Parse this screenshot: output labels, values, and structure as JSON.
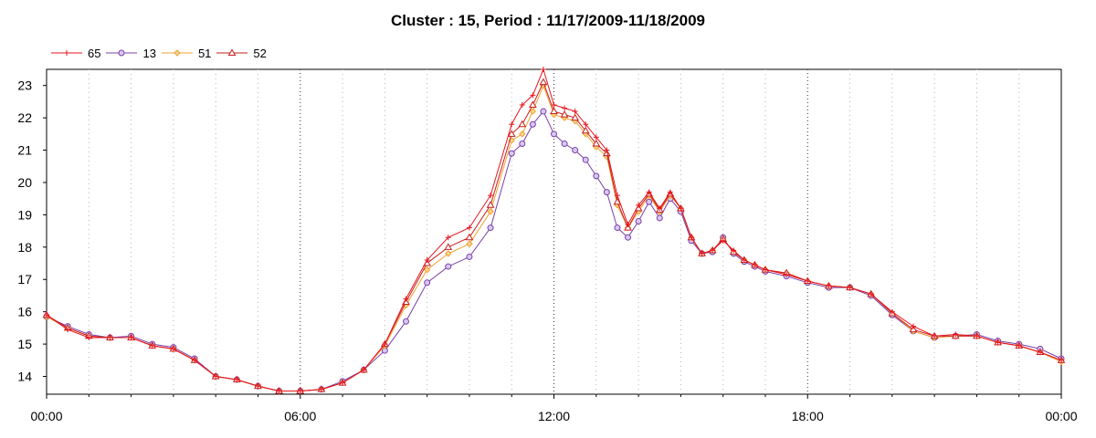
{
  "chart_data": {
    "type": "line",
    "title": "Cluster : 15, Period : 11/17/2009-11/18/2009",
    "xlabel": "",
    "ylabel": "",
    "x_ticks": [
      "00:00",
      "06:00",
      "12:00",
      "18:00",
      "00:00"
    ],
    "x_range_hours": [
      0,
      24
    ],
    "y_ticks": [
      14,
      15,
      16,
      17,
      18,
      19,
      20,
      21,
      22,
      23
    ],
    "ylim": [
      13.45,
      23.5
    ],
    "grid": "vertical dotted",
    "legend": "top-left",
    "x_hours": [
      0,
      0.5,
      1,
      1.5,
      2,
      2.5,
      3,
      3.5,
      4,
      4.5,
      5,
      5.5,
      6,
      6.5,
      7,
      7.5,
      8,
      8.5,
      9,
      9.5,
      10,
      10.5,
      11,
      11.25,
      11.5,
      11.75,
      12,
      12.25,
      12.5,
      12.75,
      13,
      13.25,
      13.5,
      13.75,
      14,
      14.25,
      14.5,
      14.75,
      15,
      15.25,
      15.5,
      15.75,
      16,
      16.25,
      16.5,
      16.75,
      17,
      17.5,
      18,
      18.5,
      19,
      19.5,
      20,
      20.5,
      21,
      21.5,
      22,
      22.5,
      23,
      23.5,
      24
    ],
    "series": [
      {
        "name": "65",
        "color": "#e8141c",
        "marker": "plus",
        "values": [
          15.9,
          15.45,
          15.2,
          15.2,
          15.2,
          14.95,
          14.85,
          14.5,
          14.0,
          13.9,
          13.7,
          13.55,
          13.55,
          13.6,
          13.8,
          14.2,
          15.0,
          16.4,
          17.6,
          18.3,
          18.6,
          19.6,
          21.8,
          22.4,
          22.7,
          23.5,
          22.4,
          22.3,
          22.2,
          21.8,
          21.4,
          21.0,
          19.6,
          18.7,
          19.3,
          19.7,
          19.2,
          19.7,
          19.2,
          18.3,
          17.8,
          17.9,
          18.2,
          17.9,
          17.6,
          17.45,
          17.3,
          17.15,
          16.95,
          16.8,
          16.75,
          16.55,
          16.0,
          15.55,
          15.25,
          15.3,
          15.25,
          15.05,
          14.95,
          14.75,
          14.5
        ]
      },
      {
        "name": "13",
        "color": "#7a3fa8",
        "marker": "circle",
        "values": [
          15.85,
          15.55,
          15.3,
          15.2,
          15.25,
          15.0,
          14.9,
          14.55,
          14.0,
          13.9,
          13.7,
          13.55,
          13.55,
          13.6,
          13.85,
          14.2,
          14.8,
          15.7,
          16.9,
          17.4,
          17.7,
          18.6,
          20.9,
          21.2,
          21.8,
          22.2,
          21.5,
          21.2,
          21.0,
          20.7,
          20.2,
          19.7,
          18.6,
          18.3,
          18.8,
          19.4,
          18.9,
          19.5,
          19.1,
          18.2,
          17.8,
          17.85,
          18.3,
          17.8,
          17.55,
          17.4,
          17.25,
          17.1,
          16.9,
          16.75,
          16.75,
          16.5,
          15.9,
          15.4,
          15.2,
          15.25,
          15.3,
          15.1,
          15.0,
          14.85,
          14.55
        ]
      },
      {
        "name": "51",
        "color": "#f0a030",
        "marker": "diamond",
        "values": [
          15.85,
          15.5,
          15.25,
          15.2,
          15.2,
          14.95,
          14.85,
          14.5,
          14.0,
          13.9,
          13.7,
          13.55,
          13.55,
          13.6,
          13.8,
          14.2,
          14.95,
          16.2,
          17.3,
          17.8,
          18.1,
          19.1,
          21.3,
          21.5,
          22.2,
          23.0,
          22.1,
          22.0,
          21.9,
          21.5,
          21.1,
          20.8,
          19.3,
          18.6,
          19.1,
          19.6,
          19.1,
          19.6,
          19.2,
          18.3,
          17.8,
          17.9,
          18.25,
          17.85,
          17.6,
          17.45,
          17.3,
          17.2,
          16.95,
          16.8,
          16.75,
          16.55,
          15.95,
          15.4,
          15.2,
          15.25,
          15.25,
          15.05,
          14.95,
          14.75,
          14.45
        ]
      },
      {
        "name": "52",
        "color": "#c81e1e",
        "marker": "triangle",
        "values": [
          15.9,
          15.5,
          15.25,
          15.2,
          15.2,
          14.95,
          14.85,
          14.5,
          14.0,
          13.9,
          13.7,
          13.55,
          13.55,
          13.6,
          13.8,
          14.2,
          15.0,
          16.3,
          17.5,
          18.0,
          18.3,
          19.3,
          21.5,
          21.8,
          22.4,
          23.1,
          22.2,
          22.1,
          22.0,
          21.6,
          21.2,
          20.9,
          19.4,
          18.6,
          19.2,
          19.65,
          19.15,
          19.65,
          19.2,
          18.3,
          17.8,
          17.9,
          18.25,
          17.85,
          17.6,
          17.45,
          17.3,
          17.2,
          16.95,
          16.8,
          16.75,
          16.55,
          15.95,
          15.45,
          15.25,
          15.25,
          15.25,
          15.05,
          14.95,
          14.75,
          14.5
        ]
      }
    ]
  }
}
